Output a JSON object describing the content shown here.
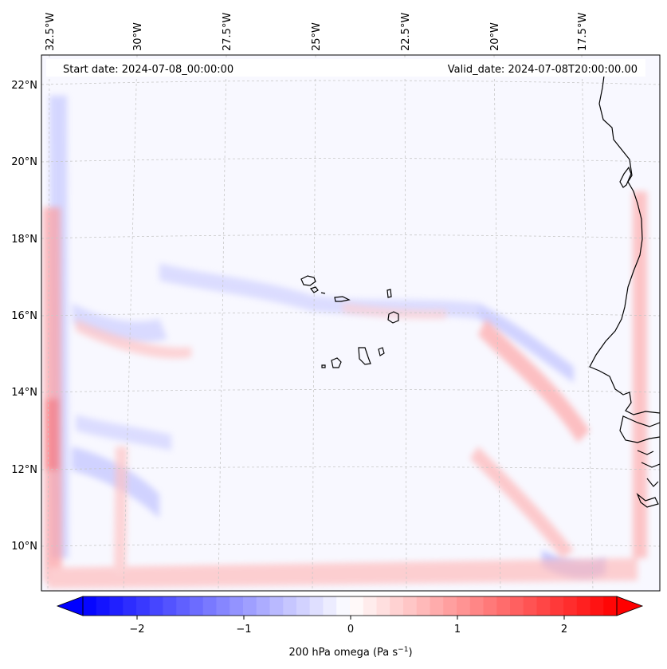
{
  "header": {
    "start_date": "Start date: 2024-07-08_00:00:00",
    "valid_date": "Valid_date: 2024-07-08T20:00:00.00"
  },
  "lon_ticks": [
    "32.5°W",
    "30°W",
    "27.5°W",
    "25°W",
    "22.5°W",
    "20°W",
    "17.5°W"
  ],
  "lat_ticks": [
    "22°N",
    "20°N",
    "18°N",
    "16°N",
    "14°N",
    "12°N",
    "10°N"
  ],
  "colorbar": {
    "ticks": [
      "−2",
      "−1",
      "0",
      "1",
      "2"
    ],
    "label": "200 hPa omega (Pa s",
    "label_sup": "−1",
    "label_end": ")",
    "colors": {
      "negative": "#0000ff",
      "zero": "#ffffff",
      "positive": "#ff0000"
    }
  },
  "colors": {
    "background_tint": "#f7f7ff",
    "grid": "#c8c8c8",
    "coast": "#000000"
  }
}
